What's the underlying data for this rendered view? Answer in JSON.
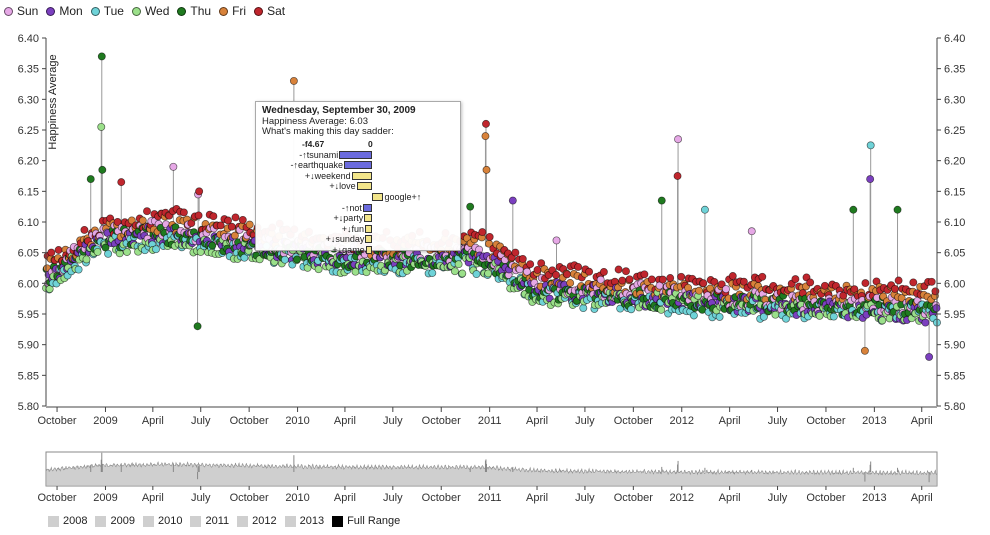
{
  "legend": [
    {
      "label": "Sun",
      "color": "#e6a8e6"
    },
    {
      "label": "Mon",
      "color": "#7b3fbf"
    },
    {
      "label": "Tue",
      "color": "#6fd3d8"
    },
    {
      "label": "Wed",
      "color": "#9be08a"
    },
    {
      "label": "Thu",
      "color": "#1f7a1f"
    },
    {
      "label": "Fri",
      "color": "#d8823a"
    },
    {
      "label": "Sat",
      "color": "#c0262d"
    }
  ],
  "chart_data": {
    "type": "scatter",
    "ylabel": "Happiness Average",
    "ylim": [
      5.8,
      6.4
    ],
    "y_ticks": [
      "5.80",
      "5.85",
      "5.90",
      "5.95",
      "6.00",
      "6.05",
      "6.10",
      "6.15",
      "6.20",
      "6.25",
      "6.30",
      "6.35",
      "6.40"
    ],
    "x_range": [
      "2008-09-10",
      "2013-04-30"
    ],
    "x_ticks": [
      {
        "date": "2008-10-01",
        "label": "October"
      },
      {
        "date": "2009-01-01",
        "label": "2009"
      },
      {
        "date": "2009-04-01",
        "label": "April"
      },
      {
        "date": "2009-07-01",
        "label": "July"
      },
      {
        "date": "2009-10-01",
        "label": "October"
      },
      {
        "date": "2010-01-01",
        "label": "2010"
      },
      {
        "date": "2010-04-01",
        "label": "April"
      },
      {
        "date": "2010-07-01",
        "label": "July"
      },
      {
        "date": "2010-10-01",
        "label": "October"
      },
      {
        "date": "2011-01-01",
        "label": "2011"
      },
      {
        "date": "2011-04-01",
        "label": "April"
      },
      {
        "date": "2011-07-01",
        "label": "July"
      },
      {
        "date": "2011-10-01",
        "label": "October"
      },
      {
        "date": "2012-01-01",
        "label": "2012"
      },
      {
        "date": "2012-04-01",
        "label": "April"
      },
      {
        "date": "2012-07-01",
        "label": "July"
      },
      {
        "date": "2012-10-01",
        "label": "October"
      },
      {
        "date": "2013-01-01",
        "label": "2013"
      },
      {
        "date": "2013-04-01",
        "label": "April"
      }
    ],
    "trend_by_weekday": [
      {
        "day": "Sun",
        "x": [
          "2008-09-10",
          "2008-12-20",
          "2009-04-20",
          "2010-04-01",
          "2010-12-25",
          "2011-04-01",
          "2012-01-01",
          "2013-04-30"
        ],
        "y": [
          6.01,
          6.08,
          6.09,
          6.05,
          6.05,
          6.0,
          5.98,
          5.96
        ]
      },
      {
        "day": "Mon",
        "x": [
          "2008-09-10",
          "2008-12-20",
          "2009-04-20",
          "2010-04-01",
          "2010-12-25",
          "2011-04-01",
          "2012-01-01",
          "2013-04-30"
        ],
        "y": [
          6.0,
          6.07,
          6.08,
          6.04,
          6.04,
          5.99,
          5.97,
          5.95
        ]
      },
      {
        "day": "Tue",
        "x": [
          "2008-09-10",
          "2008-12-20",
          "2009-04-20",
          "2010-04-01",
          "2010-12-25",
          "2011-04-01",
          "2012-01-01",
          "2013-04-30"
        ],
        "y": [
          5.99,
          6.06,
          6.07,
          6.03,
          6.03,
          5.98,
          5.96,
          5.95
        ]
      },
      {
        "day": "Wed",
        "x": [
          "2008-09-10",
          "2008-12-20",
          "2009-04-20",
          "2010-04-01",
          "2010-12-25",
          "2011-04-01",
          "2012-01-01",
          "2013-04-30"
        ],
        "y": [
          6.0,
          6.06,
          6.07,
          6.03,
          6.03,
          5.98,
          5.97,
          5.95
        ]
      },
      {
        "day": "Thu",
        "x": [
          "2008-09-10",
          "2008-12-20",
          "2009-04-20",
          "2010-04-01",
          "2010-12-25",
          "2011-04-01",
          "2012-01-01",
          "2013-04-30"
        ],
        "y": [
          6.01,
          6.07,
          6.08,
          6.04,
          6.04,
          5.99,
          5.97,
          5.96
        ]
      },
      {
        "day": "Fri",
        "x": [
          "2008-09-10",
          "2008-12-20",
          "2009-04-20",
          "2010-04-01",
          "2010-12-25",
          "2011-04-01",
          "2012-01-01",
          "2013-04-30"
        ],
        "y": [
          6.02,
          6.08,
          6.1,
          6.06,
          6.06,
          6.01,
          5.99,
          5.98
        ]
      },
      {
        "day": "Sat",
        "x": [
          "2008-09-10",
          "2008-12-20",
          "2009-04-20",
          "2010-04-01",
          "2010-12-25",
          "2011-04-01",
          "2012-01-01",
          "2013-04-30"
        ],
        "y": [
          6.03,
          6.09,
          6.11,
          6.07,
          6.07,
          6.02,
          6.0,
          5.99
        ]
      }
    ],
    "spikes": [
      {
        "date": "2008-12-25",
        "y": 6.37,
        "day": "Thu"
      },
      {
        "date": "2008-12-24",
        "y": 6.255,
        "day": "Wed"
      },
      {
        "date": "2008-12-26",
        "y": 6.185,
        "day": "Thu"
      },
      {
        "date": "2008-12-04",
        "y": 6.17,
        "day": "Thu"
      },
      {
        "date": "2009-01-31",
        "y": 6.165,
        "day": "Sat"
      },
      {
        "date": "2009-05-10",
        "y": 6.19,
        "day": "Sun"
      },
      {
        "date": "2009-06-26",
        "y": 6.145,
        "day": "Sun"
      },
      {
        "date": "2009-06-28",
        "y": 6.15,
        "day": "Sat"
      },
      {
        "date": "2009-06-25",
        "y": 5.93,
        "day": "Thu"
      },
      {
        "date": "2009-12-25",
        "y": 6.33,
        "day": "Fri"
      },
      {
        "date": "2010-11-25",
        "y": 6.125,
        "day": "Thu"
      },
      {
        "date": "2010-12-24",
        "y": 6.24,
        "day": "Fri"
      },
      {
        "date": "2010-12-25",
        "y": 6.26,
        "day": "Sat"
      },
      {
        "date": "2010-12-26",
        "y": 6.185,
        "day": "Fri"
      },
      {
        "date": "2011-02-14",
        "y": 6.135,
        "day": "Mon"
      },
      {
        "date": "2011-05-08",
        "y": 6.07,
        "day": "Sun"
      },
      {
        "date": "2011-11-24",
        "y": 6.135,
        "day": "Thu"
      },
      {
        "date": "2011-12-24",
        "y": 6.175,
        "day": "Sat"
      },
      {
        "date": "2011-12-25",
        "y": 6.235,
        "day": "Sun"
      },
      {
        "date": "2012-02-14",
        "y": 6.12,
        "day": "Tue"
      },
      {
        "date": "2012-05-13",
        "y": 6.085,
        "day": "Sun"
      },
      {
        "date": "2012-11-22",
        "y": 6.12,
        "day": "Thu"
      },
      {
        "date": "2012-12-25",
        "y": 6.225,
        "day": "Tue"
      },
      {
        "date": "2012-12-24",
        "y": 6.17,
        "day": "Mon"
      },
      {
        "date": "2013-02-14",
        "y": 6.12,
        "day": "Thu"
      },
      {
        "date": "2013-04-15",
        "y": 5.88,
        "day": "Mon"
      },
      {
        "date": "2012-12-14",
        "y": 5.89,
        "day": "Fri"
      }
    ]
  },
  "tooltip": {
    "title": "Wednesday, September 30, 2009",
    "avg": "Happiness Average: 6.03",
    "subtitle": "What's making this day sadder:",
    "axis_min": "-f4.67",
    "axis_zero": "0",
    "words": [
      {
        "label": "-↑tsunami",
        "value": -4.67,
        "side": "left",
        "color": "#6b6bde"
      },
      {
        "label": "-↑earthquake",
        "value": -4.0,
        "side": "left",
        "color": "#6b6bde"
      },
      {
        "label": "+↓weekend",
        "value": -2.9,
        "side": "left",
        "color": "#f2e58a"
      },
      {
        "label": "+↓love",
        "value": -2.2,
        "side": "left",
        "color": "#f2e58a"
      },
      {
        "label": "google+↑",
        "value": 1.5,
        "side": "right",
        "color": "#f2e58a"
      },
      {
        "label": "-↑not",
        "value": -1.3,
        "side": "left",
        "color": "#6b6bde"
      },
      {
        "label": "+↓party",
        "value": -1.1,
        "side": "left",
        "color": "#f2e58a"
      },
      {
        "label": "+↓fun",
        "value": -1.0,
        "side": "left",
        "color": "#f2e58a"
      },
      {
        "label": "+↓sunday",
        "value": -0.95,
        "side": "left",
        "color": "#f2e58a"
      },
      {
        "label": "+↓game",
        "value": -0.9,
        "side": "left",
        "color": "#f2e58a"
      }
    ]
  },
  "overview": {
    "ticks": [
      "October",
      "2009",
      "April",
      "July",
      "October",
      "2010",
      "April",
      "July",
      "October",
      "2011",
      "April",
      "July",
      "October",
      "2012",
      "April",
      "July",
      "October",
      "2013",
      "April"
    ]
  },
  "range_buttons": [
    {
      "label": "2008",
      "active": false
    },
    {
      "label": "2009",
      "active": false
    },
    {
      "label": "2010",
      "active": false
    },
    {
      "label": "2011",
      "active": false
    },
    {
      "label": "2012",
      "active": false
    },
    {
      "label": "2013",
      "active": false
    },
    {
      "label": "Full Range",
      "active": true
    }
  ]
}
